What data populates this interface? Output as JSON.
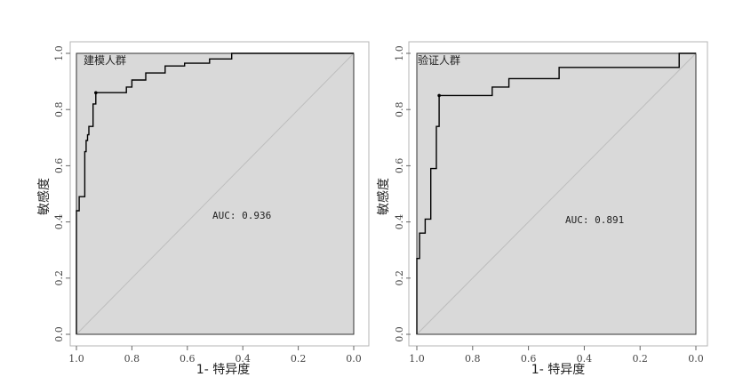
{
  "chart_data": [
    {
      "type": "line",
      "group_label": "建模人群",
      "auc_text": "AUC: 0.936",
      "xlabel": "1- 特异度",
      "ylabel": "敏感度",
      "xlim": [
        1.0,
        0.0
      ],
      "ylim": [
        0.0,
        1.0
      ],
      "x_ticks": [
        "1.0",
        "0.8",
        "0.6",
        "0.4",
        "0.2",
        "0.0"
      ],
      "y_ticks": [
        "0.0",
        "0.2",
        "0.4",
        "0.6",
        "0.8",
        "1.0"
      ],
      "grid": false,
      "legend": "none",
      "diagonal": true,
      "best_point": [
        0.93,
        0.86
      ],
      "points": [
        [
          1.0,
          0.0
        ],
        [
          1.0,
          0.44
        ],
        [
          0.99,
          0.44
        ],
        [
          0.99,
          0.49
        ],
        [
          0.97,
          0.49
        ],
        [
          0.97,
          0.65
        ],
        [
          0.965,
          0.65
        ],
        [
          0.965,
          0.69
        ],
        [
          0.96,
          0.69
        ],
        [
          0.96,
          0.71
        ],
        [
          0.955,
          0.71
        ],
        [
          0.955,
          0.74
        ],
        [
          0.94,
          0.74
        ],
        [
          0.94,
          0.82
        ],
        [
          0.93,
          0.82
        ],
        [
          0.93,
          0.86
        ],
        [
          0.82,
          0.86
        ],
        [
          0.82,
          0.88
        ],
        [
          0.8,
          0.88
        ],
        [
          0.8,
          0.905
        ],
        [
          0.75,
          0.905
        ],
        [
          0.75,
          0.93
        ],
        [
          0.68,
          0.93
        ],
        [
          0.68,
          0.955
        ],
        [
          0.61,
          0.955
        ],
        [
          0.61,
          0.965
        ],
        [
          0.52,
          0.965
        ],
        [
          0.52,
          0.98
        ],
        [
          0.44,
          0.98
        ],
        [
          0.44,
          1.0
        ],
        [
          0.0,
          1.0
        ]
      ],
      "colors": {
        "fill": "#d9d9d9",
        "line": "#000000",
        "diagonal": "#bdbdbd",
        "frame": "#b4b4b4"
      }
    },
    {
      "type": "line",
      "group_label": "验证人群",
      "auc_text": "AUC: 0.891",
      "xlabel": "1- 特异度",
      "ylabel": "敏感度",
      "xlim": [
        1.0,
        0.0
      ],
      "ylim": [
        0.0,
        1.0
      ],
      "x_ticks": [
        "1.0",
        "0.8",
        "0.6",
        "0.4",
        "0.2",
        "0.0"
      ],
      "y_ticks": [
        "0.0",
        "0.2",
        "0.4",
        "0.6",
        "0.8",
        "1.0"
      ],
      "grid": false,
      "legend": "none",
      "diagonal": true,
      "best_point": [
        0.92,
        0.85
      ],
      "points": [
        [
          1.0,
          0.0
        ],
        [
          1.0,
          0.27
        ],
        [
          0.99,
          0.27
        ],
        [
          0.99,
          0.36
        ],
        [
          0.97,
          0.36
        ],
        [
          0.97,
          0.41
        ],
        [
          0.95,
          0.41
        ],
        [
          0.95,
          0.59
        ],
        [
          0.93,
          0.59
        ],
        [
          0.93,
          0.74
        ],
        [
          0.92,
          0.74
        ],
        [
          0.92,
          0.85
        ],
        [
          0.73,
          0.85
        ],
        [
          0.73,
          0.88
        ],
        [
          0.67,
          0.88
        ],
        [
          0.67,
          0.91
        ],
        [
          0.49,
          0.91
        ],
        [
          0.49,
          0.95
        ],
        [
          0.06,
          0.95
        ],
        [
          0.06,
          1.0
        ],
        [
          0.0,
          1.0
        ]
      ],
      "colors": {
        "fill": "#d9d9d9",
        "line": "#000000",
        "diagonal": "#bdbdbd",
        "frame": "#b4b4b4"
      }
    }
  ]
}
